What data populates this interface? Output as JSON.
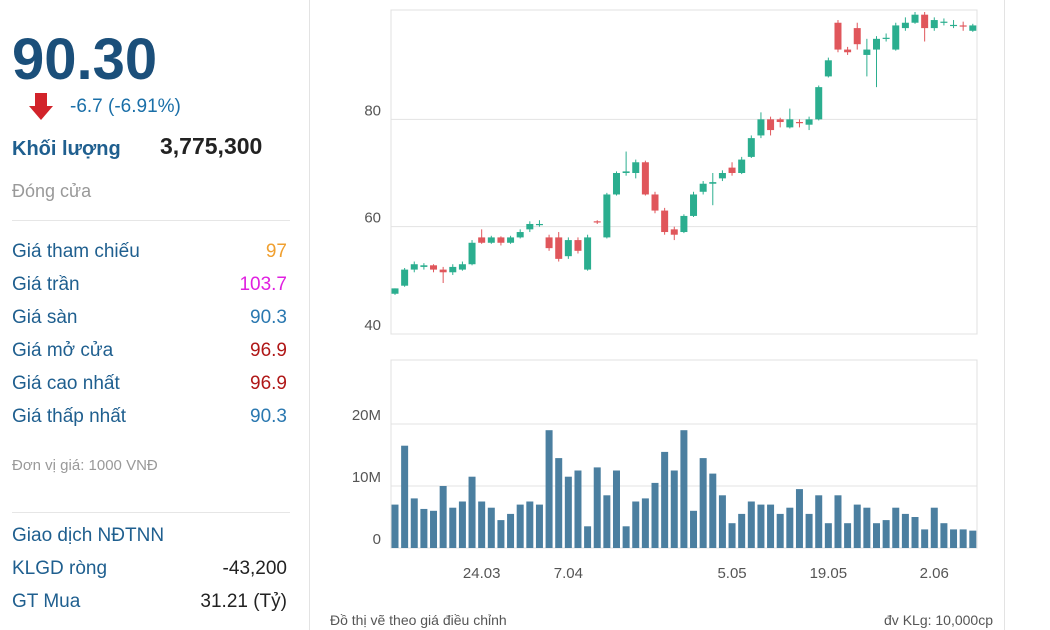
{
  "quote": {
    "price": "90.30",
    "change": "-6.7 (-6.91%)",
    "volume_label": "Khối lượng",
    "volume": "3,775,300",
    "status": "Đóng cửa"
  },
  "price_table": [
    {
      "label": "Giá tham chiếu",
      "value": "97",
      "color": "#f0a030"
    },
    {
      "label": "Giá trần",
      "value": "103.7",
      "color": "#e020e0"
    },
    {
      "label": "Giá sàn",
      "value": "90.3",
      "color": "#2a78b0"
    },
    {
      "label": "Giá mở cửa",
      "value": "96.9",
      "color": "#b01818"
    },
    {
      "label": "Giá cao nhất",
      "value": "96.9",
      "color": "#b01818"
    },
    {
      "label": "Giá thấp nhất",
      "value": "90.3",
      "color": "#2a78b0"
    }
  ],
  "unit_note": "Đơn vị giá: 1000 VNĐ",
  "foreign": {
    "title": "Giao dịch NĐTNN",
    "rows": [
      {
        "label": "KLGD ròng",
        "value": "-43,200"
      },
      {
        "label": "GT Mua",
        "value": "31.21 (Tỷ)"
      }
    ]
  },
  "chart_data": [
    {
      "type": "candlestick",
      "up_color": "#2bae8f",
      "down_color": "#e0565b",
      "open": [
        47.5,
        49,
        52,
        52.5,
        52.8,
        52,
        51.5,
        52,
        53,
        58,
        57,
        58,
        57,
        58,
        59.5,
        60.5,
        58,
        58,
        54.5,
        57.5,
        52,
        61,
        58,
        66,
        70,
        70,
        72,
        66,
        63,
        59.5,
        59,
        62,
        66.5,
        68,
        69,
        71,
        70,
        73,
        77,
        80,
        80,
        78.5,
        79.5,
        79,
        80,
        88,
        98,
        93,
        97,
        92,
        93,
        95,
        93,
        97,
        98,
        99.5,
        97,
        98,
        97.5,
        97.5,
        96.5
      ],
      "high": [
        48.5,
        52.3,
        53.5,
        53.2,
        53,
        52.5,
        53,
        53.5,
        57.5,
        59.5,
        58.3,
        58.2,
        58.3,
        59.5,
        61,
        61.2,
        58.5,
        59,
        58,
        58,
        58.5,
        61.2,
        66.3,
        70.3,
        74,
        72.5,
        72.3,
        66.5,
        63.5,
        60,
        62.3,
        66.5,
        68.5,
        70,
        70.5,
        72,
        73,
        77,
        81.3,
        80.5,
        80.3,
        82,
        80,
        80.5,
        86.3,
        91.5,
        98.5,
        93.5,
        98,
        95,
        95.5,
        96,
        98,
        99,
        100,
        100,
        99,
        98.8,
        98.5,
        98.2,
        97.8
      ],
      "low": [
        47.3,
        48.8,
        51.5,
        52,
        51.5,
        49.5,
        51,
        51.8,
        52.8,
        56.8,
        56.8,
        56.5,
        56.8,
        57.8,
        59,
        60,
        55.5,
        53.5,
        54,
        55,
        51.8,
        60.5,
        57.8,
        65.8,
        69.5,
        69,
        65.8,
        62.5,
        58.5,
        57.5,
        58.8,
        61.8,
        66,
        64,
        68.5,
        69.5,
        69.8,
        72.8,
        76.5,
        77,
        78.5,
        78.3,
        78.5,
        78,
        79.8,
        87.8,
        92.5,
        92,
        93,
        88,
        86,
        94.5,
        92.8,
        96.5,
        97.8,
        94.5,
        96.5,
        97.5,
        97,
        96.5,
        96.3
      ],
      "close": [
        48.5,
        52,
        53,
        52.8,
        52,
        51.5,
        52.5,
        53,
        57,
        57,
        58,
        57,
        58,
        59,
        60.5,
        60.5,
        56,
        54,
        57.5,
        55.5,
        58,
        60.8,
        66,
        70,
        70.3,
        72,
        66,
        63,
        59,
        58.5,
        62,
        66,
        68,
        68.3,
        70,
        70,
        72.5,
        76.5,
        80,
        78,
        79.5,
        80,
        79.3,
        80,
        86,
        91,
        93,
        92.5,
        94,
        93,
        95,
        95.2,
        97.5,
        98,
        99.5,
        97,
        98.5,
        98.2,
        97.6,
        97.3,
        97.5
      ],
      "ylim": [
        40,
        100
      ],
      "yticks": [
        40,
        60,
        80
      ],
      "grid": true
    },
    {
      "type": "bar",
      "color": "#4b7fa0",
      "categories": [
        null,
        null,
        null,
        null,
        null,
        null,
        null,
        null,
        null,
        "24.03",
        null,
        null,
        null,
        null,
        null,
        null,
        null,
        null,
        "7.04",
        null,
        null,
        null,
        null,
        null,
        null,
        null,
        null,
        null,
        null,
        null,
        null,
        null,
        null,
        null,
        null,
        "5.05",
        null,
        null,
        null,
        null,
        null,
        null,
        null,
        null,
        null,
        "19.05",
        null,
        null,
        null,
        null,
        null,
        null,
        null,
        null,
        null,
        null,
        "2.06",
        null,
        null,
        null,
        null
      ],
      "values": [
        7000000,
        16500000,
        8000000,
        6300000,
        6000000,
        10000000,
        6500000,
        7500000,
        11500000,
        7500000,
        6500000,
        4500000,
        5500000,
        7000000,
        7500000,
        7000000,
        19000000,
        14500000,
        11500000,
        12500000,
        3500000,
        13000000,
        8500000,
        12500000,
        3500000,
        7500000,
        8000000,
        10500000,
        15500000,
        12500000,
        19000000,
        6000000,
        14500000,
        12000000,
        8500000,
        4000000,
        5500000,
        7500000,
        7000000,
        7000000,
        5500000,
        6500000,
        9500000,
        5500000,
        8500000,
        4000000,
        8500000,
        4000000,
        7000000,
        6500000,
        4000000,
        4500000,
        6500000,
        5500000,
        5000000,
        3000000,
        6500000,
        4000000,
        3000000,
        3000000,
        2800000
      ],
      "ylim": [
        0,
        30000000
      ],
      "yticks": [
        0,
        {
          "value": 10000000,
          "label": "10M"
        },
        {
          "value": 20000000,
          "label": "20M"
        }
      ],
      "grid": true
    }
  ],
  "footer": {
    "left": "Đồ thị vẽ theo giá điều chỉnh",
    "right": "đv KLg: 10,000cp"
  }
}
